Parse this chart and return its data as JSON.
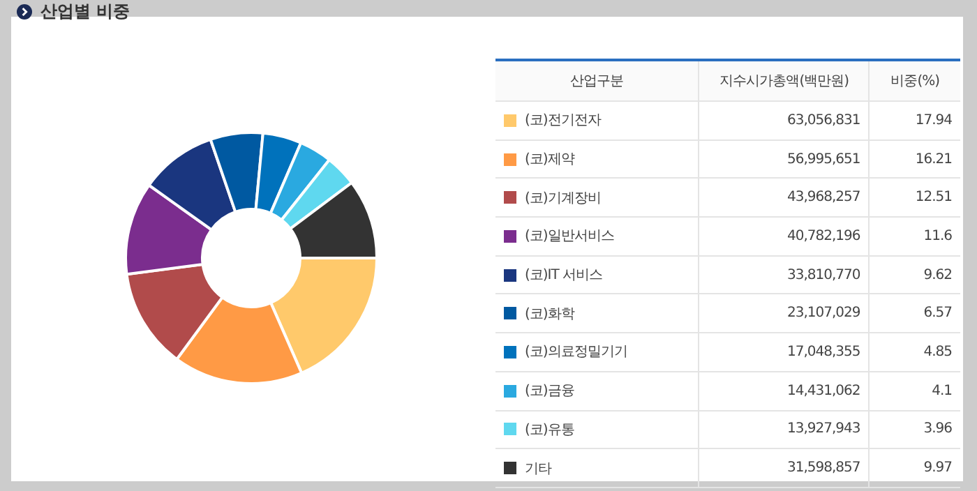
{
  "chart_data": {
    "type": "donut",
    "title": "산업별 비중",
    "annotations": [
      "산업구분",
      "지수시가총액(백만원)",
      "비중(%)",
      {
        "text": "63,056,831",
        "x": "(코)전기전자"
      },
      {
        "text": "56,995,651",
        "x": "(코)제약"
      },
      {
        "text": "43,968,257",
        "x": "(코)기계장비"
      },
      {
        "text": "40,782,196",
        "x": "(코)일반서비스"
      },
      {
        "text": "33,810,770",
        "x": "(코)IT 서비스"
      },
      {
        "text": "23,107,029",
        "x": "(코)화학"
      },
      {
        "text": "17,048,355",
        "x": "(코)의료정밀기기"
      },
      {
        "text": "14,431,062",
        "x": "(코)금융"
      },
      {
        "text": "13,927,943",
        "x": "(코)유통"
      },
      {
        "text": "31,598,857",
        "x": "기타"
      }
    ],
    "categories": [
      "(코)전기전자",
      "(코)제약",
      "(코)기계장비",
      "(코)일반서비스",
      "(코)IT 서비스",
      "(코)화학",
      "(코)의료정밀기기",
      "(코)금융",
      "(코)유통",
      "기타"
    ],
    "values": [
      17.94,
      16.21,
      12.51,
      11.6,
      9.62,
      6.57,
      4.85,
      4.1,
      3.96,
      9.97
    ],
    "colors": [
      "#ffc96b",
      "#ff9a45",
      "#b14b4b",
      "#7b2d8e",
      "#1a367f",
      "#0059a1",
      "#0072bc",
      "#2aa9e0",
      "#5fd8ef",
      "#333333"
    ],
    "data_labels": true,
    "legend": "right"
  }
}
